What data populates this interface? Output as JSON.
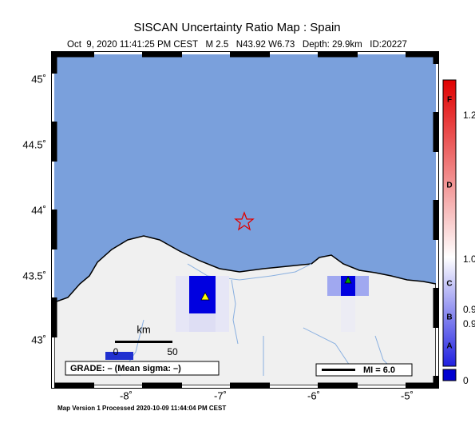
{
  "header": {
    "title": "SISCAN Uncertainty Ratio Map : Spain",
    "subtitle": "Oct  9, 2020 11:41:25 PM CEST   M 2.5   N43.92 W6.73   Depth: 29.9km   ID:20227"
  },
  "map": {
    "lat_labels": [
      "45˚",
      "44.5˚",
      "44˚",
      "43.5˚",
      "43˚"
    ],
    "lon_labels": [
      "-8˚",
      "-7˚",
      "-6˚",
      "-5˚"
    ],
    "scale_bar": {
      "unit": "km",
      "start": "0",
      "end": "50"
    },
    "grade": "GRADE: – (Mean sigma: –)",
    "mi": "MI = 6.0"
  },
  "colorbar": {
    "grades": [
      "F",
      "D",
      "C",
      "B",
      "A"
    ],
    "values": [
      "1.2",
      "1.0",
      "0.9",
      "0.9",
      "0"
    ]
  },
  "footer": "Map Version 1 Processed 2020-10-09 11:44:04 PM CEST"
}
